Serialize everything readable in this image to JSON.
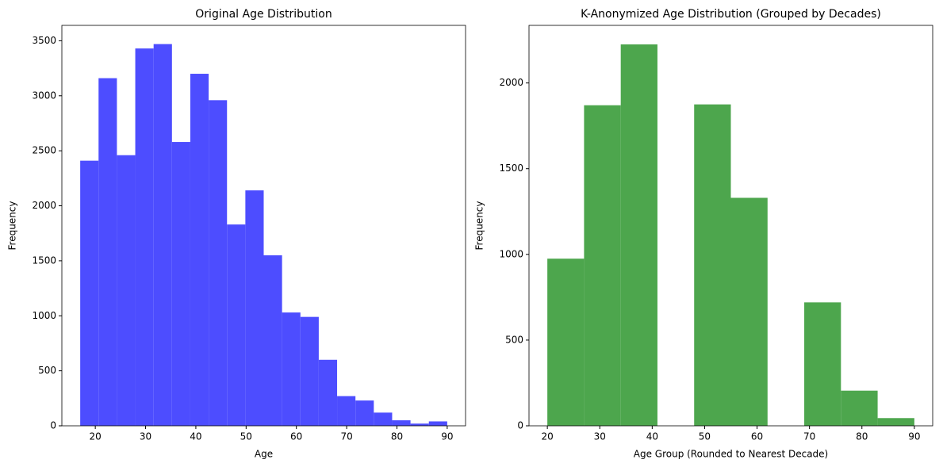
{
  "chart_data": [
    {
      "type": "histogram",
      "title": "Original Age Distribution",
      "x_label": "Age",
      "y_label": "Frequency",
      "bins": [
        17,
        20.65,
        24.3,
        27.95,
        31.6,
        35.25,
        38.9,
        42.55,
        46.2,
        49.85,
        53.5,
        57.15,
        60.8,
        64.45,
        68.1,
        71.75,
        75.4,
        79.05,
        82.7,
        86.35,
        90
      ],
      "values": [
        2410,
        3160,
        2460,
        3430,
        3470,
        2580,
        3200,
        2960,
        1830,
        2140,
        1550,
        1030,
        990,
        600,
        270,
        230,
        120,
        50,
        20,
        40
      ],
      "color": "#4d4dff",
      "xlim": [
        13.35,
        93.65
      ],
      "xticks": [
        20,
        30,
        40,
        50,
        60,
        70,
        80,
        90
      ],
      "ylim": [
        0,
        3640
      ],
      "yticks": [
        0,
        500,
        1000,
        1500,
        2000,
        2500,
        3000,
        3500
      ]
    },
    {
      "type": "histogram",
      "title": "K-Anonymized Age Distribution (Grouped by Decades)",
      "x_label": "Age Group (Rounded to Nearest Decade)",
      "y_label": "Frequency",
      "bins": [
        20,
        27,
        34,
        41,
        48,
        55,
        62,
        69,
        76,
        83,
        90
      ],
      "values": [
        975,
        1870,
        2225,
        0,
        1875,
        1330,
        0,
        720,
        205,
        45
      ],
      "color": "#4da64d",
      "xlim": [
        16.5,
        93.5
      ],
      "xticks": [
        20,
        30,
        40,
        50,
        60,
        70,
        80,
        90
      ],
      "ylim": [
        0,
        2336
      ],
      "yticks": [
        0,
        500,
        1000,
        1500,
        2000
      ]
    }
  ]
}
